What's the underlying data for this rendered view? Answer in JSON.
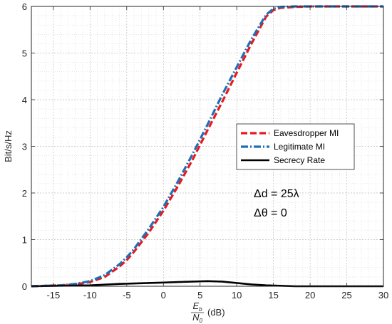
{
  "chart_data": {
    "type": "line",
    "xlabel": "(dB)",
    "xlabel_fraction": {
      "numerator": "E",
      "numerator_sub": "b",
      "denominator": "N",
      "denominator_sub": "0"
    },
    "ylabel": "Bit/s/Hz",
    "xlim": [
      -18,
      30
    ],
    "ylim": [
      0,
      6
    ],
    "xticks": [
      -15,
      -10,
      -5,
      0,
      5,
      10,
      15,
      20,
      25,
      30
    ],
    "yticks": [
      0,
      1,
      2,
      3,
      4,
      5,
      6
    ],
    "grid": true,
    "minor_grid": true,
    "legend_position": "center-right",
    "series": [
      {
        "name": "Eavesdropper MI",
        "color": "#e8191f",
        "style": "dashed",
        "x": [
          -18,
          -16,
          -14,
          -12,
          -10,
          -8,
          -6,
          -5,
          -4,
          -2,
          0,
          2,
          4,
          6,
          8,
          10,
          12,
          14,
          15,
          16,
          18,
          20,
          22,
          24,
          26,
          28,
          30
        ],
        "y": [
          0.0,
          0.01,
          0.02,
          0.04,
          0.09,
          0.2,
          0.42,
          0.56,
          0.74,
          1.15,
          1.62,
          2.15,
          2.72,
          3.34,
          3.95,
          4.58,
          5.2,
          5.78,
          5.92,
          5.97,
          5.99,
          6.0,
          6.0,
          6.0,
          6.0,
          6.0,
          6.0
        ]
      },
      {
        "name": "Legitimate MI",
        "color": "#1f6fb5",
        "style": "dashdot",
        "x": [
          -18,
          -16,
          -14,
          -12,
          -10,
          -8,
          -6,
          -5,
          -4,
          -2,
          0,
          2,
          4,
          6,
          8,
          10,
          12,
          14,
          15,
          16,
          18,
          20,
          22,
          24,
          26,
          28,
          30
        ],
        "y": [
          0.0,
          0.01,
          0.02,
          0.05,
          0.11,
          0.24,
          0.47,
          0.62,
          0.8,
          1.23,
          1.7,
          2.25,
          2.84,
          3.46,
          4.1,
          4.7,
          5.3,
          5.82,
          5.95,
          5.99,
          6.0,
          6.0,
          6.0,
          6.0,
          6.0,
          6.0,
          6.0
        ]
      },
      {
        "name": "Secrecy Rate",
        "color": "#000000",
        "style": "solid",
        "x": [
          -18,
          -14,
          -10,
          -6,
          -2,
          0,
          2,
          4,
          6,
          8,
          10,
          12,
          14,
          16,
          18,
          20,
          24,
          30
        ],
        "y": [
          0.0,
          0.01,
          0.02,
          0.05,
          0.07,
          0.08,
          0.09,
          0.1,
          0.11,
          0.1,
          0.07,
          0.04,
          0.02,
          0.01,
          0.0,
          0.0,
          0.0,
          0.0
        ]
      }
    ],
    "annotations": [
      {
        "text": "Δd = 25λ"
      },
      {
        "text": "Δθ = 0"
      }
    ]
  }
}
